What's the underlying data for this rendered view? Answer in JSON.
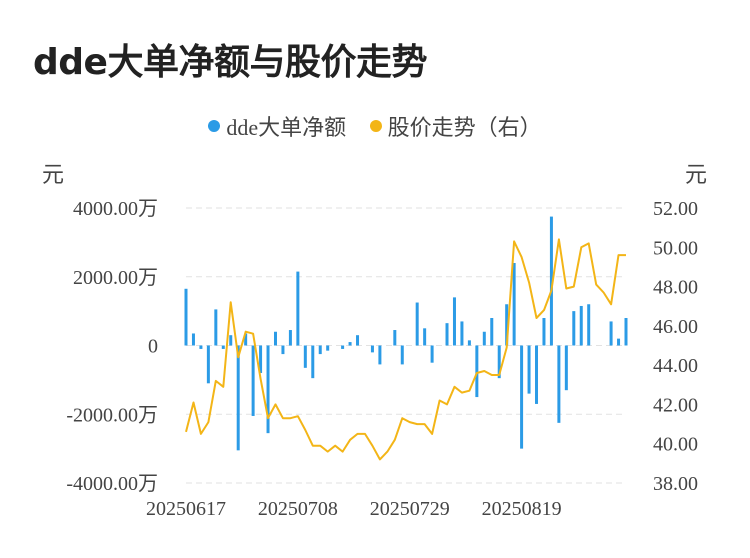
{
  "title": "dde大单净额与股价走势",
  "legend": [
    {
      "label": "dde大单净额",
      "color": "#2b9be6"
    },
    {
      "label": "股价走势（右）",
      "color": "#f3b517"
    }
  ],
  "chart_data": {
    "type": "bar+line",
    "left_axis": {
      "unit": "元",
      "ticks": [
        {
          "v": 4000,
          "label": "4000.00万"
        },
        {
          "v": 2000,
          "label": "2000.00万"
        },
        {
          "v": 0,
          "label": "0"
        },
        {
          "v": -2000,
          "label": "-2000.00万"
        },
        {
          "v": -4000,
          "label": "-4000.00万"
        }
      ],
      "ylim": [
        -4000,
        4000
      ]
    },
    "right_axis": {
      "unit": "元",
      "ticks": [
        52,
        50,
        48,
        46,
        44,
        42,
        40,
        38
      ],
      "tick_labels": [
        "52.00",
        "50.00",
        "48.00",
        "46.00",
        "44.00",
        "42.00",
        "40.00",
        "38.00"
      ],
      "ylim": [
        38,
        52
      ]
    },
    "x_tick_labels": [
      {
        "index": 0,
        "label": "20250617"
      },
      {
        "index": 15,
        "label": "20250708"
      },
      {
        "index": 30,
        "label": "20250729"
      },
      {
        "index": 45,
        "label": "20250819"
      }
    ],
    "grid": "dashed-horizontal",
    "series": [
      {
        "name": "dde大单净额",
        "type": "bar",
        "color": "#2b9be6",
        "values": [
          1650,
          350,
          -100,
          -1100,
          1050,
          -100,
          300,
          -3050,
          350,
          -2050,
          -800,
          -2550,
          400,
          -250,
          450,
          2150,
          -650,
          -950,
          -250,
          -150,
          0,
          -100,
          100,
          300,
          0,
          -200,
          -550,
          0,
          450,
          -550,
          0,
          1250,
          500,
          -500,
          0,
          650,
          1400,
          700,
          150,
          -1500,
          400,
          800,
          -950,
          1200,
          2400,
          -3000,
          -1400,
          -1700,
          800,
          3750,
          -2250,
          -1300,
          1000,
          1150,
          1200,
          0,
          0,
          700,
          200,
          800
        ]
      },
      {
        "name": "股价走势（右）",
        "type": "line",
        "axis": "right",
        "color": "#f3b517",
        "values": [
          40.6,
          42.1,
          40.5,
          41.1,
          43.2,
          42.9,
          47.2,
          44.4,
          45.7,
          45.6,
          43.3,
          41.3,
          42.0,
          41.3,
          41.3,
          41.4,
          40.7,
          39.9,
          39.9,
          39.6,
          39.9,
          39.6,
          40.2,
          40.5,
          40.5,
          39.9,
          39.2,
          39.6,
          40.2,
          41.3,
          41.1,
          41.0,
          41.0,
          40.5,
          42.2,
          42.0,
          42.9,
          42.6,
          42.7,
          43.6,
          43.7,
          43.5,
          43.5,
          44.9,
          50.3,
          49.5,
          48.2,
          46.4,
          46.8,
          47.8,
          50.4,
          47.9,
          48.0,
          50.0,
          50.2,
          48.1,
          47.7,
          47.1,
          49.6,
          49.6
        ]
      }
    ]
  }
}
